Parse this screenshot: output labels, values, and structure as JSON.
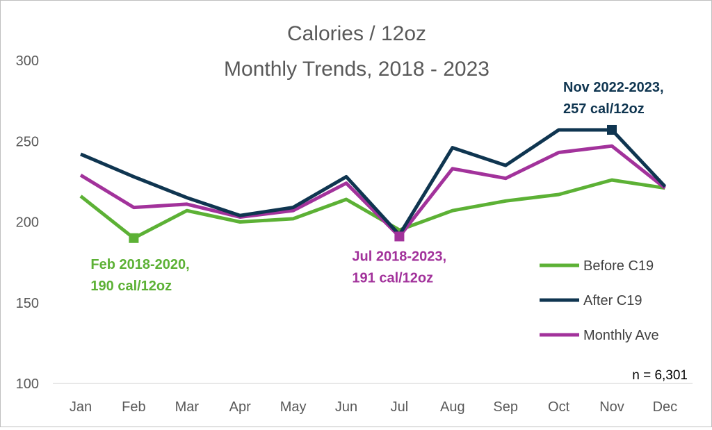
{
  "chart_data": {
    "type": "line",
    "title": [
      "Calories / 12oz",
      "Monthly Trends, 2018 - 2023"
    ],
    "categories": [
      "Jan",
      "Feb",
      "Mar",
      "Apr",
      "May",
      "Jun",
      "Jul",
      "Aug",
      "Sep",
      "Oct",
      "Nov",
      "Dec"
    ],
    "ylim": [
      100,
      300
    ],
    "yticks": [
      "100",
      "150",
      "200",
      "250",
      "300"
    ],
    "grid": false,
    "legend_position": "bottom-right",
    "series": [
      {
        "name": "Before C19",
        "color": "#5cb135",
        "values": [
          216,
          190,
          207,
          200,
          202,
          214,
          195,
          207,
          213,
          217,
          226,
          221
        ]
      },
      {
        "name": "After C19",
        "color": "#0f3550",
        "values": [
          242,
          228,
          215,
          204,
          209,
          228,
          192,
          246,
          235,
          257,
          257,
          222
        ]
      },
      {
        "name": "Monthly Ave",
        "color": "#a2329b",
        "values": [
          229,
          209,
          211,
          203,
          207,
          224,
          191,
          233,
          227,
          243,
          247,
          221
        ]
      }
    ],
    "annotations": [
      {
        "series": 0,
        "index": 1,
        "lines": [
          "Feb 2018-2020,",
          "190 cal/12oz"
        ],
        "color": "#5cb135"
      },
      {
        "series": 2,
        "index": 6,
        "lines": [
          "Jul 2018-2023,",
          "191 cal/12oz"
        ],
        "color": "#a2329b"
      },
      {
        "series": 1,
        "index": 10,
        "lines": [
          "Nov 2022-2023,",
          "257 cal/12oz"
        ],
        "color": "#0f3550"
      }
    ],
    "note": "n = 6,301"
  }
}
